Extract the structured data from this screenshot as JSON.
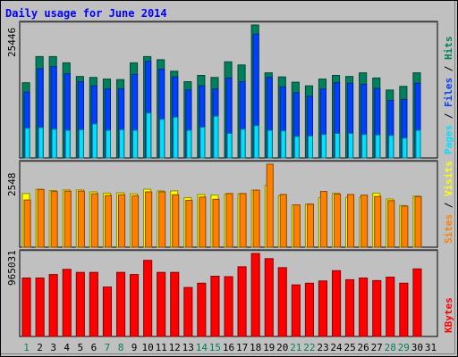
{
  "chart_data": {
    "type": "bar",
    "title": "Daily usage for June 2014",
    "categories": [
      "1",
      "2",
      "3",
      "4",
      "5",
      "6",
      "7",
      "8",
      "9",
      "10",
      "11",
      "12",
      "13",
      "14",
      "15",
      "16",
      "17",
      "18",
      "19",
      "20",
      "21",
      "22",
      "23",
      "24",
      "25",
      "26",
      "27",
      "28",
      "29",
      "30",
      "31"
    ],
    "weekend_days": [
      "1",
      "7",
      "8",
      "14",
      "15",
      "21",
      "22",
      "28",
      "29"
    ],
    "panels": [
      {
        "id": "top",
        "axis_max_label": "25446",
        "ymax": 25446,
        "right_labels": [
          "Pages",
          "Files",
          "Hits"
        ],
        "series": [
          {
            "name": "Hits",
            "color": "#00805c",
            "values": [
              14400,
              19400,
              19400,
              18200,
              15600,
              15400,
              15100,
              15000,
              18200,
              19400,
              18800,
              16600,
              14600,
              15800,
              15400,
              18400,
              17800,
              25446,
              16300,
              15500,
              14500,
              13800,
              15100,
              15800,
              15600,
              16300,
              15300,
              13000,
              13700,
              16300,
              null
            ]
          },
          {
            "name": "Files",
            "color": "#0040ff",
            "values": [
              12600,
              17100,
              17500,
              16100,
              14600,
              13800,
              13200,
              13200,
              16000,
              18500,
              17000,
              15500,
              13000,
              13800,
              13200,
              15300,
              14600,
              23700,
              15400,
              13600,
              12500,
              11800,
              13200,
              14400,
              14300,
              14100,
              13300,
              11000,
              11200,
              14300,
              null
            ]
          },
          {
            "name": "Pages",
            "color": "#00e0ff",
            "values": [
              5700,
              5800,
              5500,
              5300,
              5400,
              6500,
              5300,
              5400,
              5300,
              8600,
              7400,
              7800,
              5300,
              5900,
              8000,
              4700,
              5500,
              6200,
              5300,
              5200,
              4100,
              4200,
              4500,
              4700,
              4700,
              4500,
              4400,
              4300,
              3800,
              5300,
              null
            ]
          }
        ]
      },
      {
        "id": "middle",
        "axis_max_label": "2548",
        "ymax": 2548,
        "right_labels": [
          "Sites",
          "Visits"
        ],
        "series": [
          {
            "name": "Visits",
            "color": "#ffff00",
            "values": [
              1650,
              1780,
              1740,
              1760,
              1760,
              1700,
              1660,
              1670,
              1640,
              1780,
              1730,
              1730,
              1520,
              1620,
              1600,
              1630,
              1640,
              1750,
              1900,
              1580,
              1300,
              1330,
              1520,
              1660,
              1530,
              1530,
              1660,
              1480,
              1280,
              1570,
              null
            ]
          },
          {
            "name": "Sites",
            "color": "#ff8000",
            "values": [
              1450,
              1770,
              1710,
              1720,
              1720,
              1640,
              1590,
              1610,
              1580,
              1700,
              1700,
              1610,
              1440,
              1540,
              1470,
              1650,
              1650,
              1750,
              2548,
              1620,
              1300,
              1320,
              1710,
              1630,
              1620,
              1600,
              1560,
              1430,
              1260,
              1550,
              null
            ]
          }
        ]
      },
      {
        "id": "bottom",
        "axis_max_label": "965031",
        "ymax": 965031,
        "right_labels": [
          "KBytes"
        ],
        "series": [
          {
            "name": "KBytes",
            "color": "#ff0000",
            "values": [
              680000,
              680000,
              720000,
              780000,
              745000,
              745000,
              575000,
              745000,
              720000,
              885000,
              745000,
              745000,
              570000,
              620000,
              700000,
              695000,
              810000,
              965031,
              905000,
              800000,
              600000,
              620000,
              645000,
              765000,
              660000,
              680000,
              650000,
              690000,
              620000,
              785000,
              null
            ]
          }
        ]
      }
    ]
  },
  "colors": {
    "background": "#c0c0c0",
    "title": "#0000ff",
    "axis_label": "#000000",
    "weekday": "#000000",
    "weekend": "#00805c",
    "grid": "#808080",
    "separator": "#000000"
  }
}
